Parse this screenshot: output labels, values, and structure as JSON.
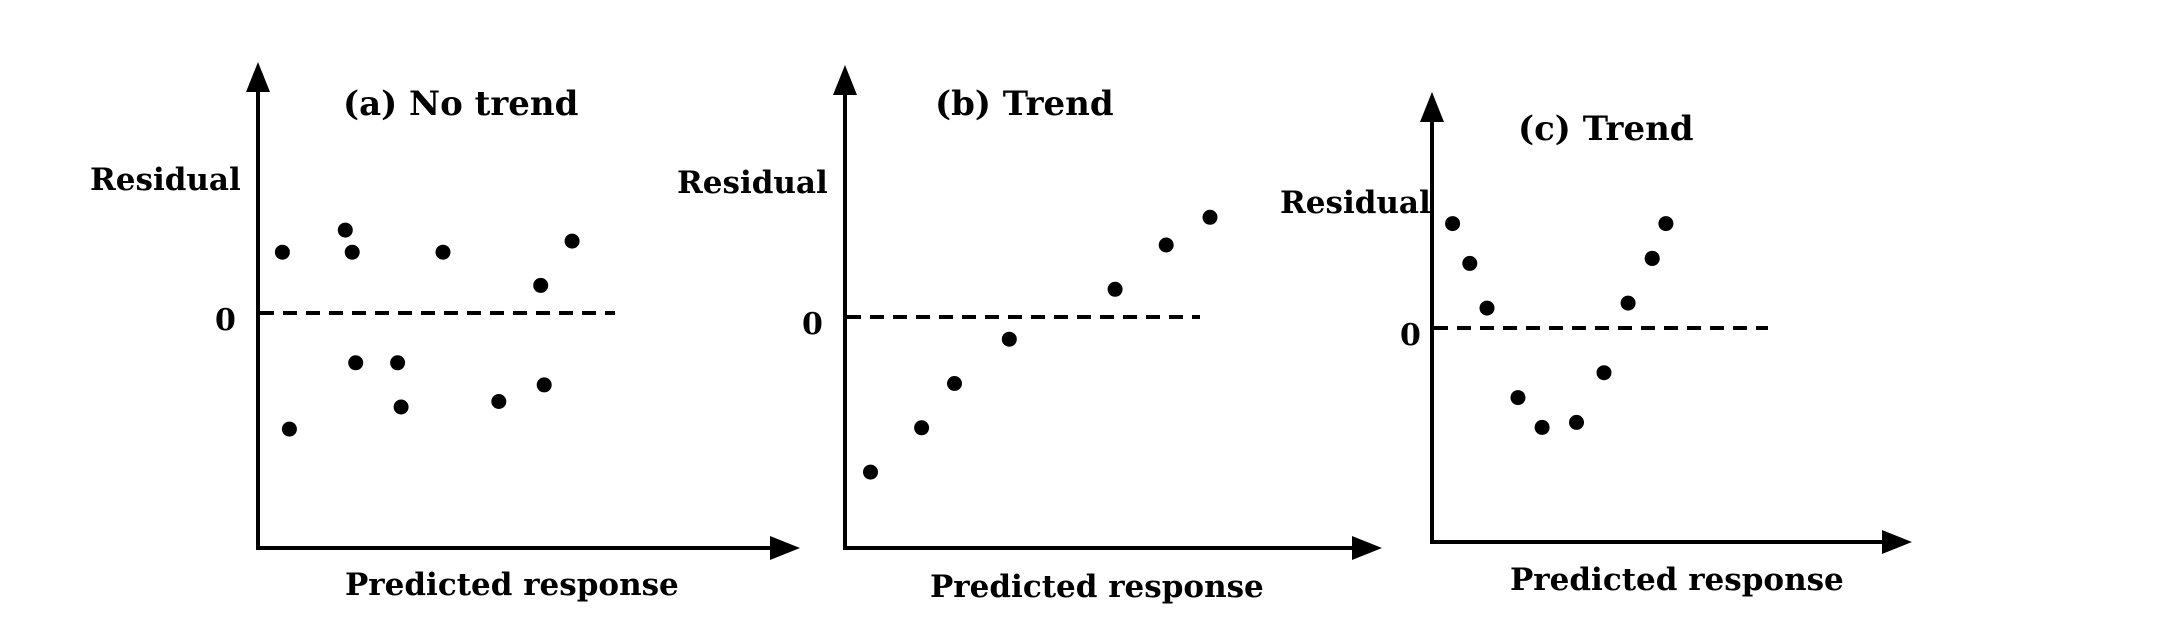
{
  "chart_data": [
    {
      "type": "scatter",
      "title": "(a) No trend",
      "xlabel": "Predicted response",
      "ylabel": "Residual",
      "zero_label": "0",
      "xlim": [
        0,
        10
      ],
      "ylim": [
        -5,
        5
      ],
      "grid": false,
      "legend": "none",
      "x": [
        0.7,
        0.9,
        2.5,
        2.7,
        2.8,
        4.0,
        4.1,
        5.3,
        6.9,
        8.1,
        8.2,
        9.0
      ],
      "y": [
        1.1,
        -2.1,
        1.5,
        1.1,
        -0.9,
        -0.9,
        -1.7,
        1.1,
        -1.6,
        0.5,
        -1.3,
        1.3
      ]
    },
    {
      "type": "scatter",
      "title": "(b) Trend",
      "xlabel": "Predicted response",
      "ylabel": "Residual",
      "zero_label": "0",
      "xlim": [
        0,
        10
      ],
      "ylim": [
        -5,
        5
      ],
      "grid": false,
      "legend": "none",
      "x": [
        0.7,
        2.1,
        3.0,
        4.5,
        7.4,
        8.8,
        10.0
      ],
      "y": [
        -2.8,
        -2.0,
        -1.2,
        -0.4,
        0.5,
        1.3,
        1.8
      ]
    },
    {
      "type": "scatter",
      "title": "(c) Trend",
      "xlabel": "Predicted response",
      "ylabel": "Residual",
      "zero_label": "0",
      "xlim": [
        0,
        10
      ],
      "ylim": [
        -5,
        5
      ],
      "grid": false,
      "legend": "none",
      "x": [
        0.6,
        1.1,
        1.6,
        2.5,
        3.2,
        4.2,
        5.0,
        5.7,
        6.4,
        6.4,
        6.8
      ],
      "y": [
        2.1,
        1.3,
        0.4,
        -1.4,
        -2.0,
        -1.9,
        -0.9,
        0.5,
        1.4,
        1.4,
        2.1
      ]
    }
  ]
}
